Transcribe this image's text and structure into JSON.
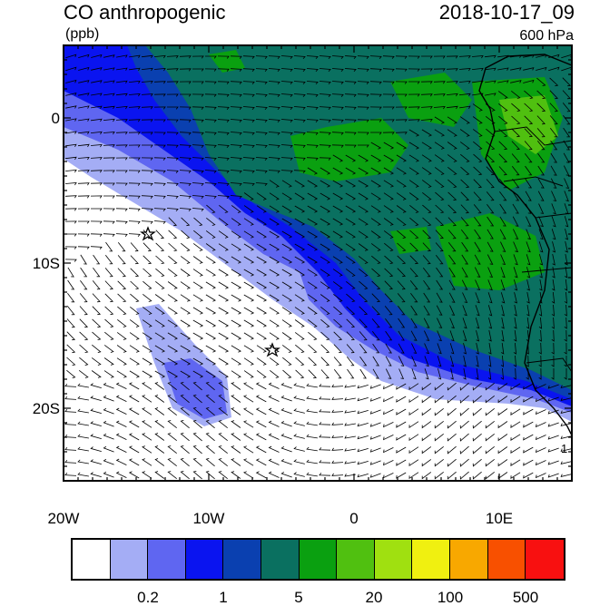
{
  "header": {
    "title": "CO anthropogenic",
    "date": "2018-10-17_09",
    "units": "(ppb)",
    "level": "600 hPa"
  },
  "axes": {
    "lat_labels": [
      "0",
      "10S",
      "20S"
    ],
    "lon_labels": [
      "20W",
      "10W",
      "0",
      "10E"
    ]
  },
  "colorbar": {
    "colors": [
      "#ffffff",
      "#a4adf5",
      "#5f66f1",
      "#0a14f0",
      "#0a40b0",
      "#0a7060",
      "#0aa010",
      "#50c010",
      "#a0e010",
      "#f0f010",
      "#f8a800",
      "#f85000",
      "#f81010"
    ],
    "labels": [
      "0.2",
      "1",
      "5",
      "20",
      "100",
      "500"
    ]
  },
  "colors": {
    "low": "#ffffff",
    "light_blue": "#a4adf5",
    "mid_blue": "#5f66f1",
    "blue": "#0a14f0",
    "dark_blue": "#0a40b0",
    "teal": "#0a7060",
    "green": "#0aa010",
    "light_green": "#50c010"
  },
  "annotations": {
    "corner_label": "1"
  }
}
